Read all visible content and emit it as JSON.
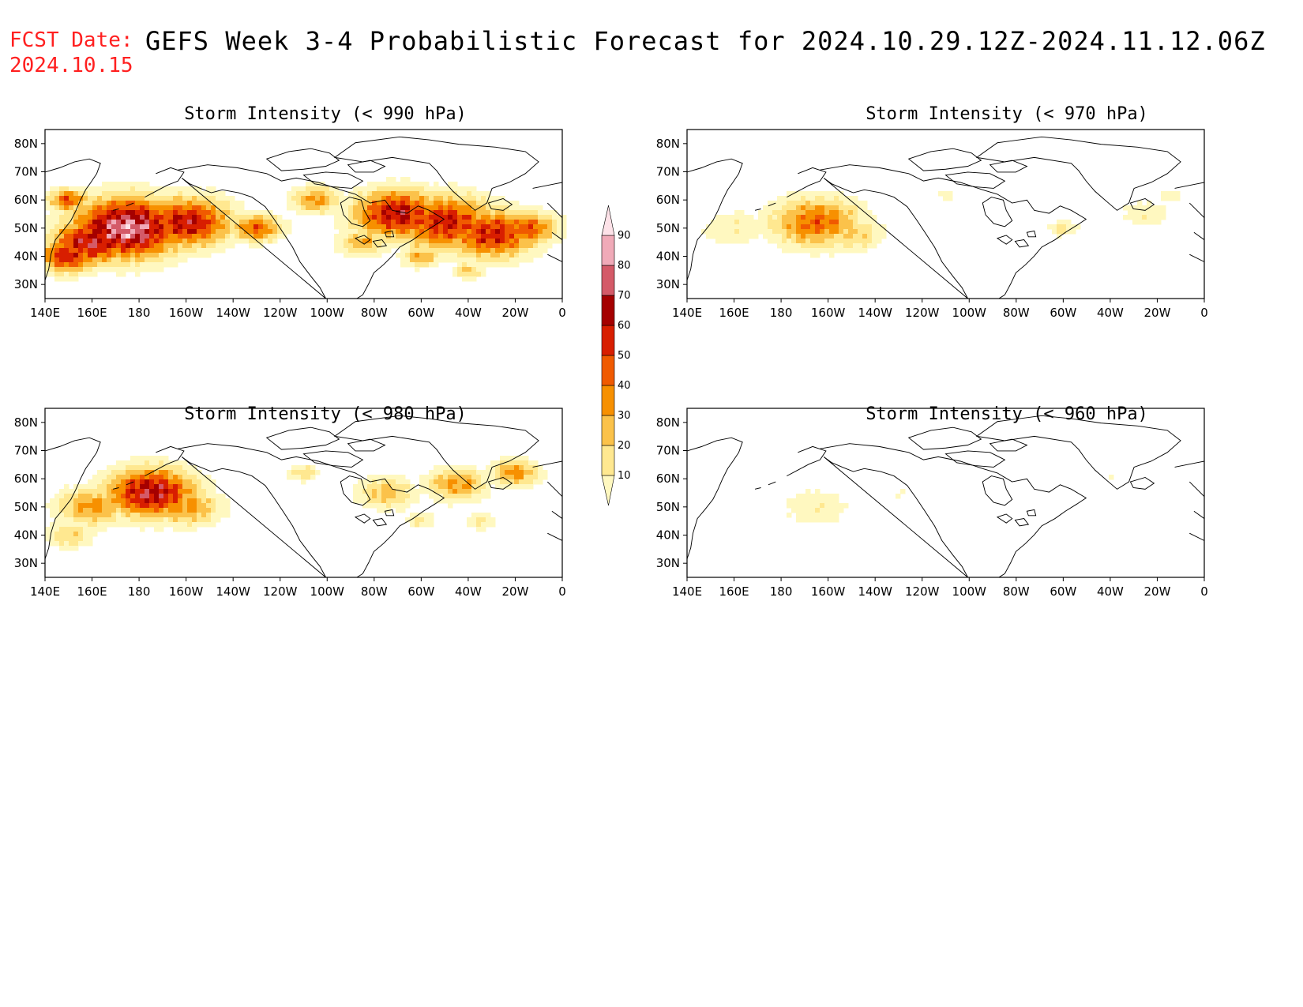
{
  "header": {
    "fcst_label": "FCST Date:",
    "fcst_date": "2024.10.15",
    "title": "GEFS Week 3-4 Probabilistic Forecast for 2024.10.29.12Z-2024.11.12.06Z"
  },
  "panels": [
    {
      "id": "p990",
      "title": "Storm Intensity (< 990 hPa)"
    },
    {
      "id": "p970",
      "title": "Storm Intensity (< 970 hPa)"
    },
    {
      "id": "p980",
      "title": "Storm Intensity (< 980 hPa)"
    },
    {
      "id": "p960",
      "title": "Storm Intensity (< 960 hPa)"
    }
  ],
  "axes": {
    "lon_ticks": [
      "140E",
      "160E",
      "180",
      "160W",
      "140W",
      "120W",
      "100W",
      "80W",
      "60W",
      "40W",
      "20W",
      "0"
    ],
    "lat_ticks": [
      "80N",
      "70N",
      "60N",
      "50N",
      "40N",
      "30N"
    ],
    "lon_range": [
      140,
      360
    ],
    "lat_range": [
      25,
      85
    ]
  },
  "colorbar": {
    "levels": [
      "10",
      "20",
      "30",
      "40",
      "50",
      "60",
      "70",
      "80",
      "90"
    ],
    "colors": [
      "#fff8c0",
      "#ffe890",
      "#fbc24a",
      "#f79000",
      "#f05a00",
      "#d81e00",
      "#a50000",
      "#d45a68",
      "#f0aab8",
      "#fde2e8"
    ]
  }
}
